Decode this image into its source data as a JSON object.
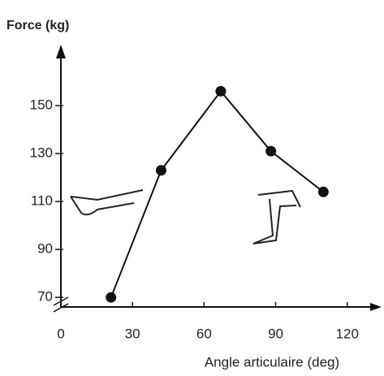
{
  "chart_data": {
    "type": "line",
    "title": "Force (kg)",
    "x_label": "Angle articulaire (deg)",
    "x": [
      21,
      42,
      67,
      88,
      110
    ],
    "values": [
      70,
      123,
      156,
      131,
      114
    ],
    "color": "#111111",
    "xlim": [
      0,
      132
    ],
    "xticks": [
      0,
      30,
      60,
      90,
      120
    ],
    "ylim": [
      66,
      170
    ],
    "yticks": [
      70,
      90,
      110,
      130,
      150
    ]
  }
}
